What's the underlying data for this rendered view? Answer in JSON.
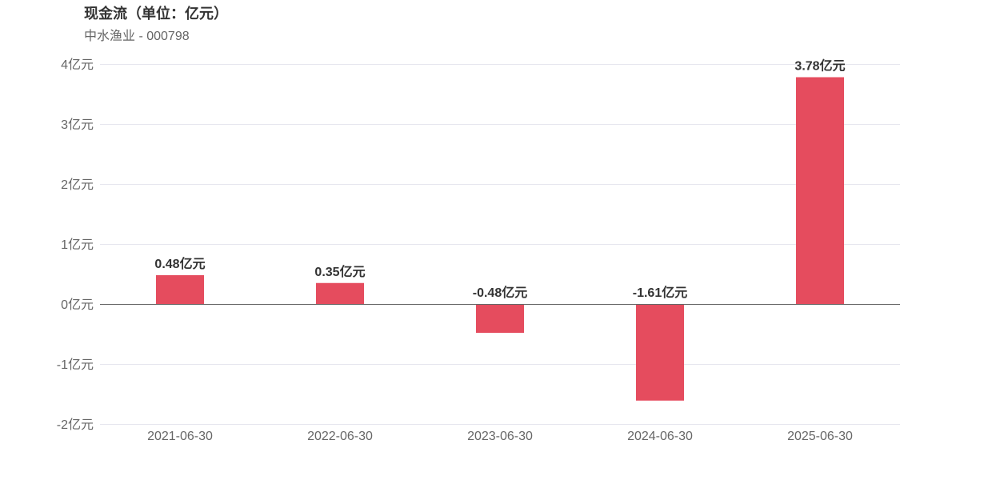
{
  "title": "现金流（单位：亿元）",
  "subtitle": "中水渔业 - 000798",
  "chart_data": {
    "type": "bar",
    "categories": [
      "2021-06-30",
      "2022-06-30",
      "2023-06-30",
      "2024-06-30",
      "2025-06-30"
    ],
    "values": [
      0.48,
      0.35,
      -0.48,
      -1.61,
      3.78
    ],
    "data_labels": [
      "0.48亿元",
      "0.35亿元",
      "-0.48亿元",
      "-1.61亿元",
      "3.78亿元"
    ],
    "ylim": [
      -2,
      4
    ],
    "yticks": [
      -2,
      -1,
      0,
      1,
      2,
      3,
      4
    ],
    "ytick_labels": [
      "-2亿元",
      "-1亿元",
      "0亿元",
      "1亿元",
      "2亿元",
      "3亿元",
      "4亿元"
    ],
    "unit": "亿元",
    "grid": true,
    "bar_color": "#e54c5e",
    "grid_color": "#e6e6ee",
    "zero_line_color": "#666666"
  }
}
